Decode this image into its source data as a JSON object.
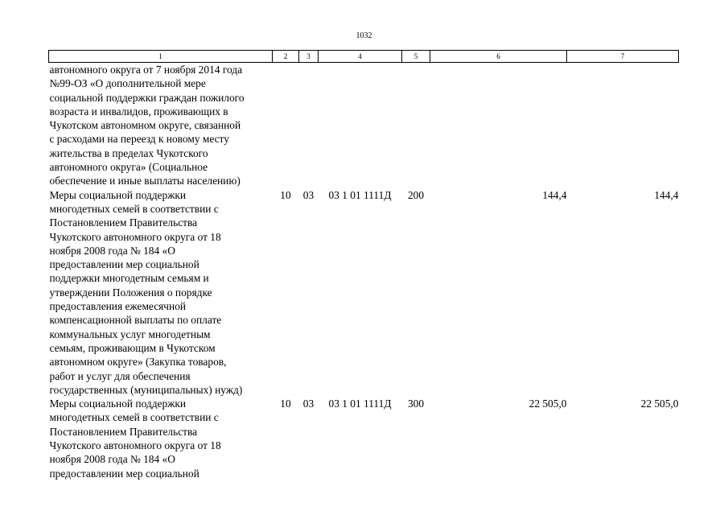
{
  "page_number": "1032",
  "columns": [
    "1",
    "2",
    "3",
    "4",
    "5",
    "6",
    "7"
  ],
  "rows": [
    {
      "name": "автономного округа от 7 ноября 2014 года\n№99-ОЗ «О дополнительной мере\nсоциальной поддержки граждан пожилого\nвозраста и инвалидов, проживающих в\nЧукотском автономном округе, связанной\nс расходами на переезд к новому месту\nжительства в пределах Чукотского\nавтономного округа» (Социальное\nобеспечение и иные выплаты населению)",
      "section": "",
      "subsection": "",
      "target": "",
      "expense_type": "",
      "amount_1": "",
      "amount_2": ""
    },
    {
      "name": "Меры социальной поддержки\nмногодетных семей в соответствии с\nПостановлением Правительства\nЧукотского автономного округа от 18\nноября 2008 года № 184 «О\nпредоставлении мер социальной\nподдержки многодетным семьям и\nутверждении Положения о порядке\nпредоставления ежемесячной\nкомпенсационной выплаты по оплате\nкоммунальных услуг многодетным\nсемьям, проживающим в Чукотском\nавтономном округе» (Закупка товаров,\nработ и услуг для обеспечения\nгосударственных (муниципальных) нужд)",
      "section": "10",
      "subsection": "03",
      "target": "03 1 01 1111Д",
      "expense_type": "200",
      "amount_1": "144,4",
      "amount_2": "144,4"
    },
    {
      "name": "Меры социальной поддержки\nмногодетных семей в соответствии с\nПостановлением Правительства\nЧукотского автономного округа от 18\nноября 2008 года № 184 «О\nпредоставлении мер социальной",
      "section": "10",
      "subsection": "03",
      "target": "03 1 01 1111Д",
      "expense_type": "300",
      "amount_1": "22 505,0",
      "amount_2": "22 505,0"
    }
  ]
}
